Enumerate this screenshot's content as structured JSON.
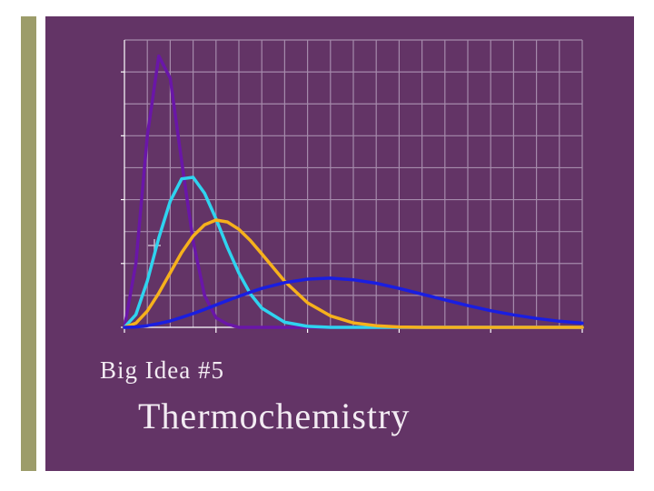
{
  "chart_data": {
    "type": "line",
    "x": [
      0,
      0.5,
      1,
      1.5,
      2,
      2.5,
      3,
      3.5,
      4,
      4.5,
      5,
      5.5,
      6,
      7,
      8,
      9,
      10,
      11,
      12,
      13,
      14,
      15,
      16,
      17,
      18,
      19,
      20
    ],
    "series": [
      {
        "color": "#6a16a8",
        "values": [
          0,
          2.0,
          6.0,
          8.5,
          7.8,
          5.2,
          2.7,
          1.0,
          0.3,
          0.1,
          0,
          0,
          0,
          0,
          0,
          0,
          0,
          0,
          0,
          0,
          0,
          0,
          0,
          0,
          0,
          0,
          0
        ]
      },
      {
        "color": "#2fd3ef",
        "values": [
          0,
          0.4,
          1.45,
          2.8,
          3.95,
          4.65,
          4.7,
          4.2,
          3.4,
          2.5,
          1.7,
          1.05,
          0.6,
          0.16,
          0.03,
          0,
          0,
          0,
          0,
          0,
          0,
          0,
          0,
          0,
          0,
          0,
          0
        ]
      },
      {
        "color": "#f6b11c",
        "values": [
          0,
          0.13,
          0.51,
          1.07,
          1.71,
          2.34,
          2.86,
          3.21,
          3.36,
          3.3,
          3.07,
          2.72,
          2.3,
          1.44,
          0.77,
          0.36,
          0.14,
          0.05,
          0.01,
          0,
          0,
          0,
          0,
          0,
          0,
          0,
          0
        ]
      },
      {
        "color": "#1a1ee0",
        "values": [
          0,
          0.01,
          0.05,
          0.12,
          0.2,
          0.31,
          0.43,
          0.56,
          0.7,
          0.84,
          0.97,
          1.1,
          1.22,
          1.4,
          1.51,
          1.54,
          1.49,
          1.38,
          1.22,
          1.04,
          0.86,
          0.68,
          0.52,
          0.39,
          0.28,
          0.19,
          0.13
        ]
      }
    ],
    "xlim": [
      0,
      20
    ],
    "ylim": [
      0,
      9
    ],
    "xticks": [
      0,
      4,
      8,
      12,
      16,
      20
    ],
    "yticks": [
      0,
      2,
      4,
      6,
      8
    ],
    "xgrid": [
      1,
      2,
      3,
      4,
      5,
      6,
      7,
      8,
      9,
      10,
      11,
      12,
      13,
      14,
      15,
      16,
      17,
      18,
      19,
      20
    ],
    "ygrid": [
      1,
      2,
      3,
      4,
      5,
      6,
      7,
      8,
      9
    ]
  },
  "slide": {
    "subtitle": "Big Idea #5",
    "title": "Thermochemistry"
  }
}
